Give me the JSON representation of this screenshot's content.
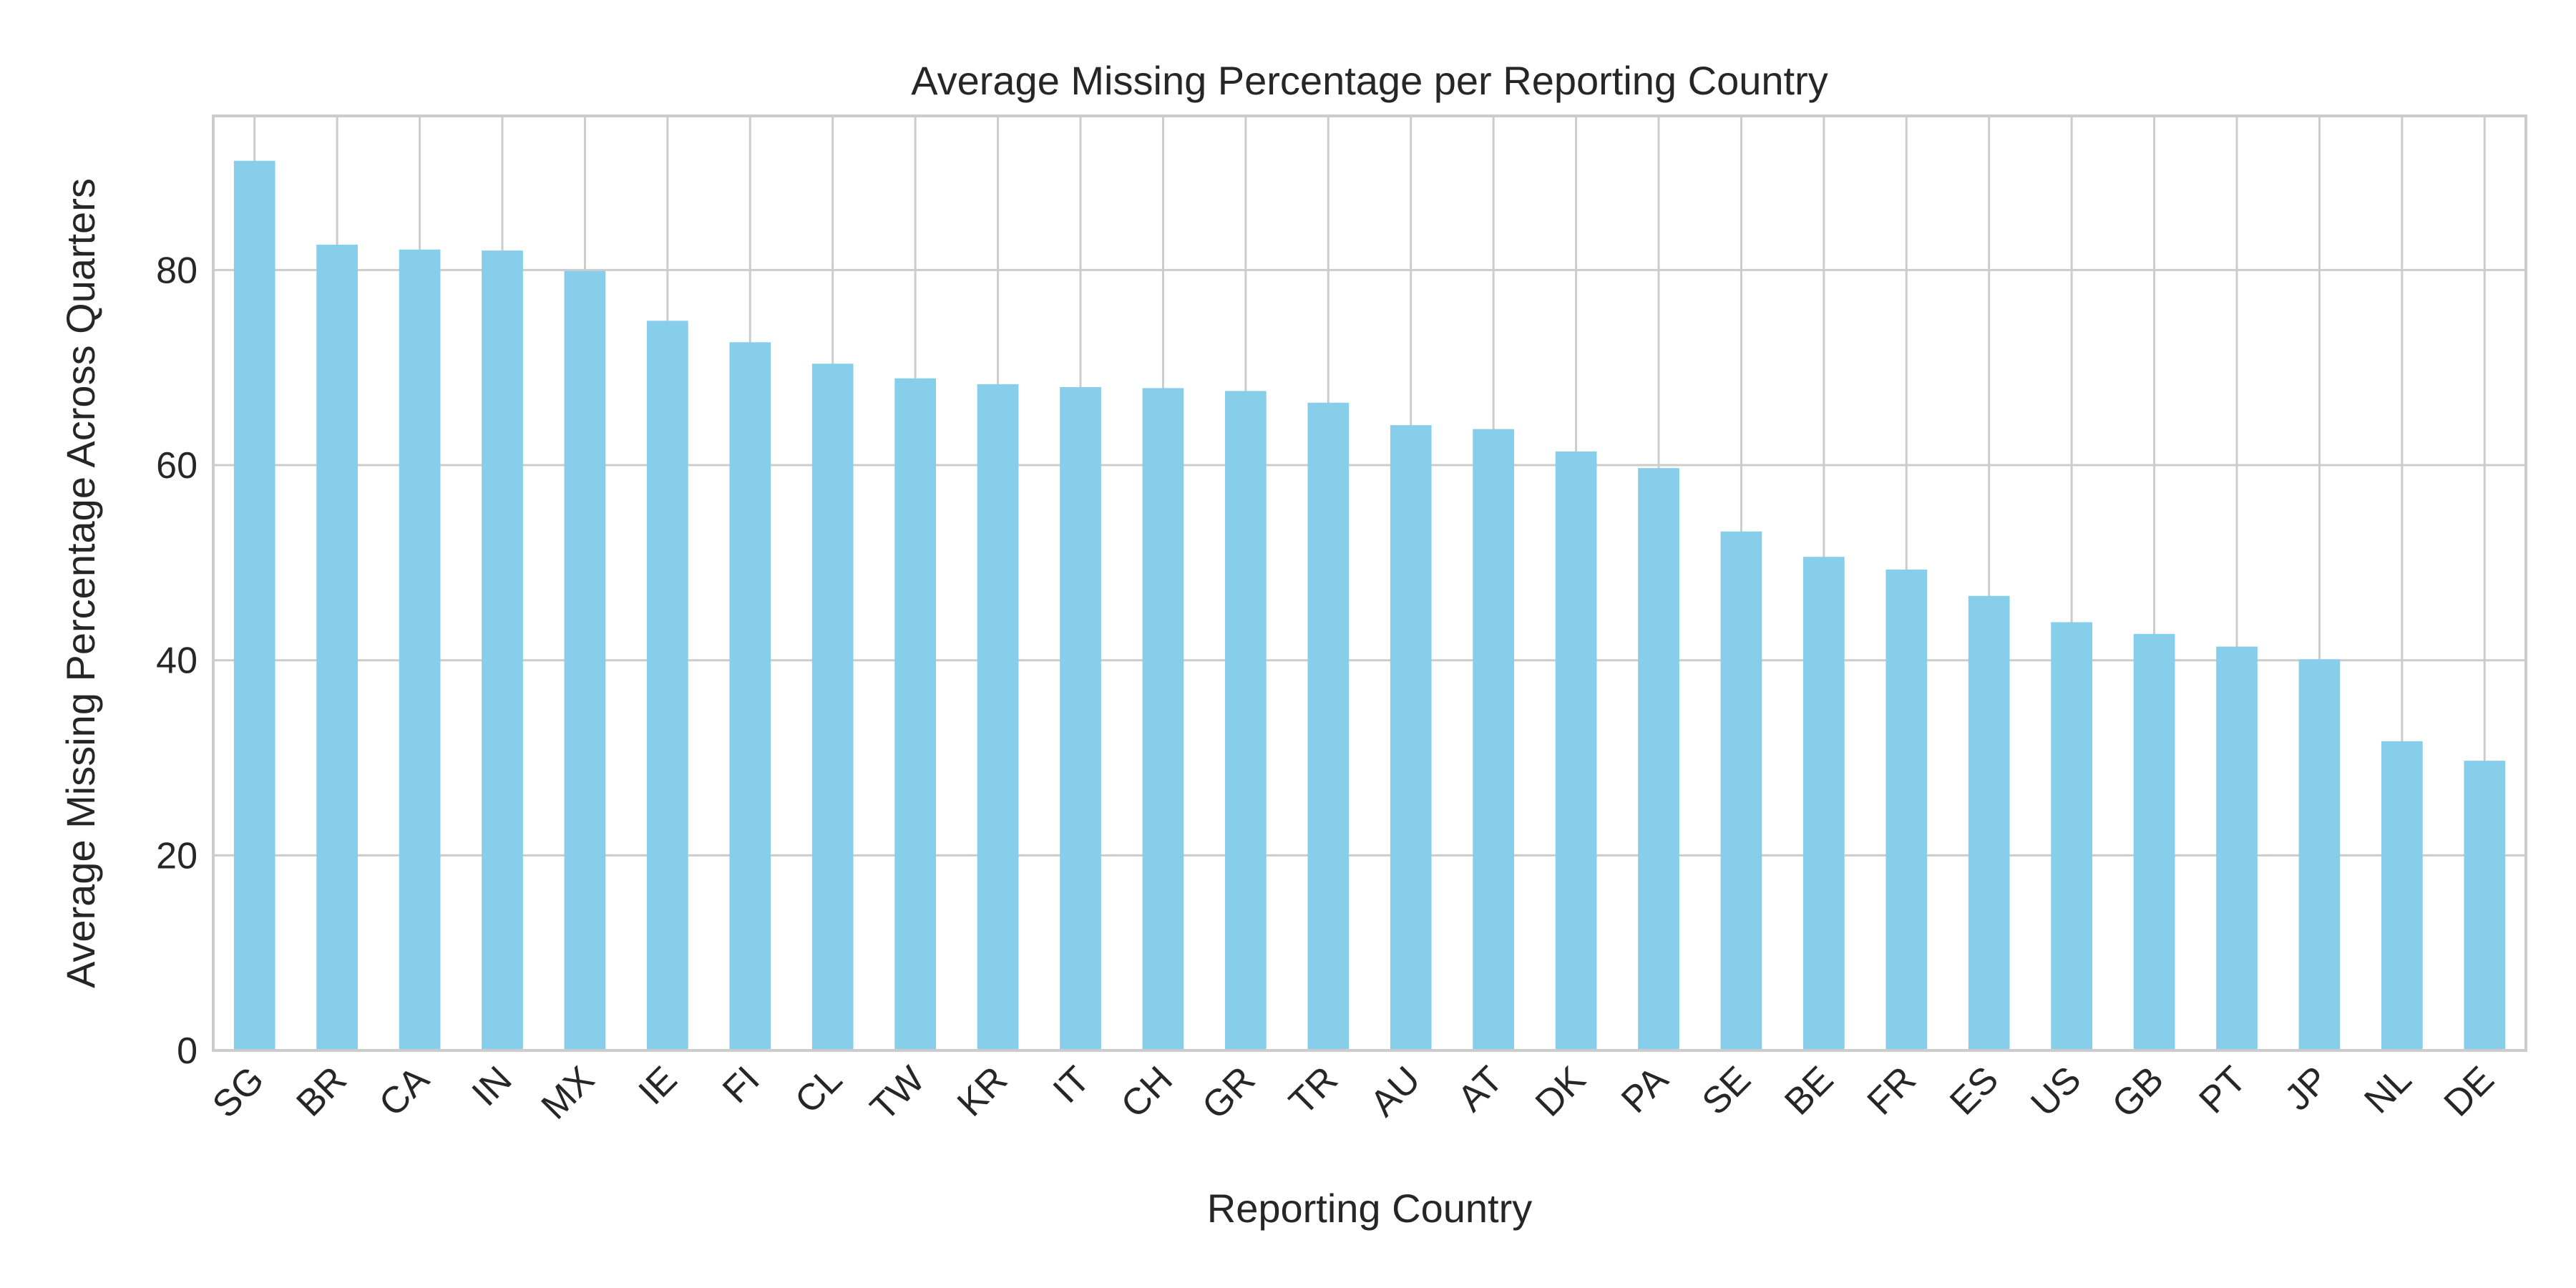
{
  "chart_data": {
    "type": "bar",
    "title": "Average Missing Percentage per Reporting Country",
    "xlabel": "Reporting Country",
    "ylabel": "Average Missing Percentage Across Quarters",
    "categories": [
      "SG",
      "BR",
      "CA",
      "IN",
      "MX",
      "IE",
      "FI",
      "CL",
      "TW",
      "KR",
      "IT",
      "CH",
      "GR",
      "TR",
      "AU",
      "AT",
      "DK",
      "PA",
      "SE",
      "BE",
      "FR",
      "ES",
      "US",
      "GB",
      "PT",
      "JP",
      "NL",
      "DE"
    ],
    "values": [
      91.2,
      82.6,
      82.1,
      82.0,
      79.9,
      74.8,
      72.6,
      70.4,
      68.9,
      68.3,
      68.0,
      67.9,
      67.6,
      66.4,
      64.1,
      63.7,
      61.4,
      59.7,
      53.2,
      50.6,
      49.3,
      46.6,
      43.9,
      42.7,
      41.4,
      40.1,
      31.7,
      29.7
    ],
    "yticks": [
      0,
      20,
      40,
      60,
      80
    ],
    "ylim": [
      0,
      95.8
    ],
    "grid": true,
    "colors": {
      "bar": "#87ceeb",
      "grid": "#cccccc",
      "frame": "#cccccc",
      "text": "#262626"
    }
  }
}
